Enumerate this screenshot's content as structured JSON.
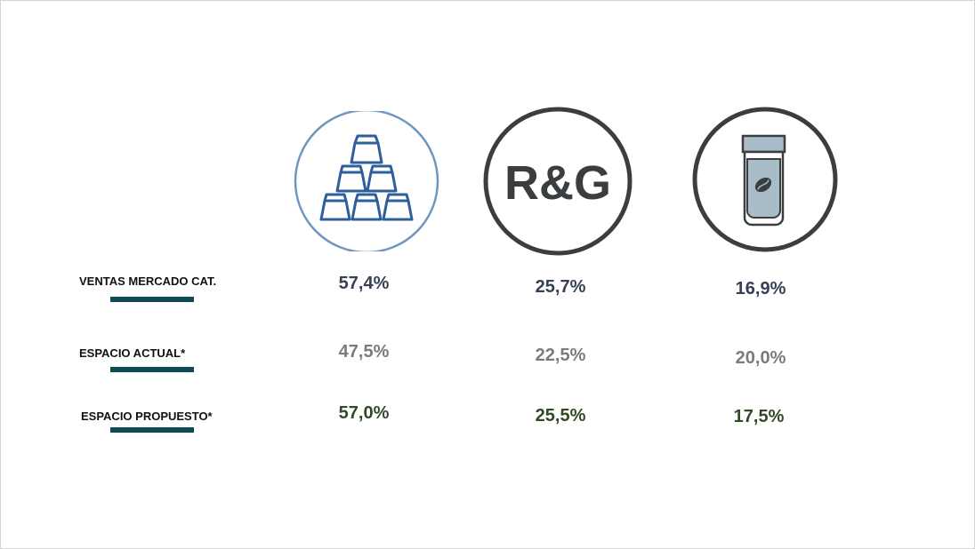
{
  "colors": {
    "underline": "#0f4b55",
    "sales_value": "#364055",
    "current_space_value": "#7b7b7b",
    "proposed_space_value": "#2f4a25",
    "capsule_ring": "#6f97bf",
    "capsule_stroke": "#2e5f9a",
    "dark_ring": "#3b3e40",
    "jar_fill": "#a9bdc8"
  },
  "columns": [
    {
      "icon": "coffee-capsules-icon"
    },
    {
      "icon": "rg-logo-icon",
      "logo_text": "R&G"
    },
    {
      "icon": "coffee-jar-icon"
    }
  ],
  "rows": [
    {
      "label": "VENTAS MERCADO CAT.",
      "values": [
        "57,4%",
        "25,7%",
        "16,9%"
      ]
    },
    {
      "label": "ESPACIO ACTUAL*",
      "values": [
        "47,5%",
        "22,5%",
        "20,0%"
      ]
    },
    {
      "label": "ESPACIO PROPUESTO*",
      "values": [
        "57,0%",
        "25,5%",
        "17,5%"
      ]
    }
  ]
}
